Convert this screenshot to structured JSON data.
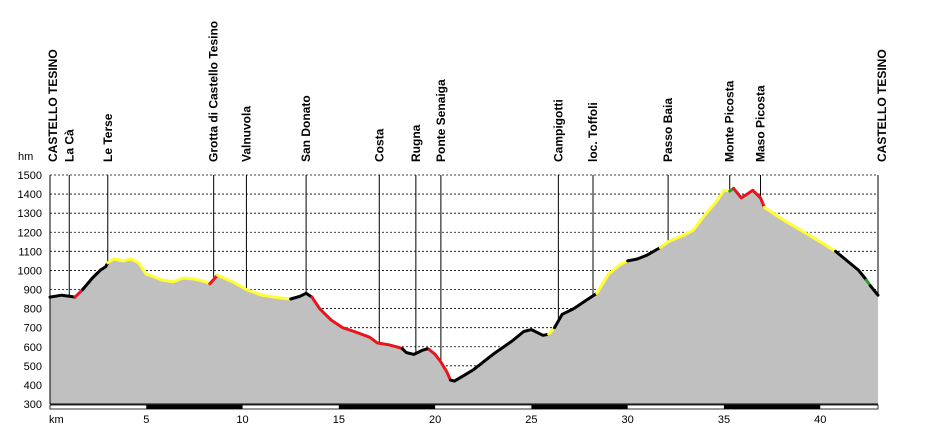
{
  "chart_data": {
    "type": "area",
    "title": "",
    "ylabel": "hm",
    "xlabel": "km",
    "xlim": [
      0,
      43
    ],
    "ylim": [
      300,
      1500
    ],
    "yticks": [
      300,
      400,
      500,
      600,
      700,
      800,
      900,
      1000,
      1100,
      1200,
      1300,
      1400,
      1500
    ],
    "xticks": [
      5,
      10,
      15,
      20,
      25,
      30,
      35,
      40
    ],
    "grid": "horizontal dashed",
    "colors": {
      "fill": "#c0c0c0",
      "black": "#000000",
      "yellow": "#ffff33",
      "red": "#e8141e",
      "green": "#2a9a2a"
    },
    "waypoints": [
      {
        "name": "CASTELLO TESINO",
        "km": 0.0
      },
      {
        "name": "La Cà",
        "km": 1.0
      },
      {
        "name": "Le Terse",
        "km": 3.0
      },
      {
        "name": "Grotta di Castello Tesino",
        "km": 8.5
      },
      {
        "name": "Valnuvola",
        "km": 10.2
      },
      {
        "name": "San Donato",
        "km": 13.3
      },
      {
        "name": "Costa",
        "km": 17.1
      },
      {
        "name": "Rugna",
        "km": 19.0
      },
      {
        "name": "Ponte Senaiga",
        "km": 20.3
      },
      {
        "name": "Campigotti",
        "km": 26.4
      },
      {
        "name": "loc. Toffoli",
        "km": 28.2
      },
      {
        "name": "Passo Baia",
        "km": 32.1
      },
      {
        "name": "Monte Picosta",
        "km": 35.3
      },
      {
        "name": "Maso Picosta",
        "km": 36.9
      },
      {
        "name": "CASTELLO TESINO",
        "km": 43.0
      }
    ],
    "series": [
      {
        "color": "black",
        "points": [
          [
            0.0,
            860
          ],
          [
            0.6,
            870
          ],
          [
            1.0,
            865
          ],
          [
            1.3,
            860
          ]
        ]
      },
      {
        "color": "red",
        "points": [
          [
            1.3,
            860
          ],
          [
            1.7,
            900
          ]
        ]
      },
      {
        "color": "black",
        "points": [
          [
            1.7,
            900
          ],
          [
            2.2,
            960
          ],
          [
            2.6,
            1000
          ],
          [
            2.9,
            1020
          ],
          [
            3.0,
            1040
          ]
        ]
      },
      {
        "color": "yellow",
        "points": [
          [
            3.0,
            1040
          ],
          [
            3.3,
            1060
          ],
          [
            3.8,
            1050
          ],
          [
            4.2,
            1060
          ],
          [
            4.6,
            1040
          ],
          [
            5.0,
            980
          ],
          [
            5.3,
            970
          ],
          [
            5.8,
            950
          ],
          [
            6.4,
            940
          ],
          [
            6.9,
            960
          ],
          [
            7.5,
            955
          ],
          [
            8.1,
            940
          ],
          [
            8.3,
            930
          ]
        ]
      },
      {
        "color": "red",
        "points": [
          [
            8.3,
            930
          ],
          [
            8.7,
            975
          ]
        ]
      },
      {
        "color": "yellow",
        "points": [
          [
            8.7,
            975
          ],
          [
            9.5,
            940
          ],
          [
            10.2,
            900
          ],
          [
            11.0,
            870
          ],
          [
            12.0,
            855
          ],
          [
            12.5,
            850
          ]
        ]
      },
      {
        "color": "black",
        "points": [
          [
            12.5,
            850
          ],
          [
            13.0,
            865
          ],
          [
            13.3,
            880
          ],
          [
            13.6,
            860
          ]
        ]
      },
      {
        "color": "red",
        "points": [
          [
            13.6,
            860
          ],
          [
            14.0,
            800
          ],
          [
            14.6,
            740
          ],
          [
            15.2,
            700
          ],
          [
            15.8,
            680
          ],
          [
            16.6,
            650
          ],
          [
            17.0,
            620
          ],
          [
            17.6,
            610
          ],
          [
            18.0,
            600
          ],
          [
            18.3,
            590
          ]
        ]
      },
      {
        "color": "black",
        "points": [
          [
            18.3,
            590
          ],
          [
            18.5,
            570
          ],
          [
            18.9,
            560
          ],
          [
            19.3,
            580
          ],
          [
            19.6,
            590
          ],
          [
            19.7,
            585
          ]
        ]
      },
      {
        "color": "red",
        "points": [
          [
            19.7,
            585
          ],
          [
            20.0,
            560
          ],
          [
            20.3,
            520
          ],
          [
            20.6,
            470
          ],
          [
            20.8,
            425
          ]
        ]
      },
      {
        "color": "black",
        "points": [
          [
            20.8,
            425
          ],
          [
            21.0,
            420
          ],
          [
            21.5,
            450
          ],
          [
            22.0,
            480
          ],
          [
            23.0,
            560
          ],
          [
            24.0,
            630
          ],
          [
            24.6,
            680
          ],
          [
            25.0,
            690
          ],
          [
            25.6,
            660
          ],
          [
            25.9,
            665
          ]
        ]
      },
      {
        "color": "yellow",
        "points": [
          [
            25.9,
            665
          ],
          [
            26.2,
            700
          ]
        ]
      },
      {
        "color": "black",
        "points": [
          [
            26.2,
            700
          ],
          [
            26.6,
            770
          ],
          [
            27.2,
            800
          ],
          [
            27.8,
            840
          ],
          [
            28.4,
            880
          ]
        ]
      },
      {
        "color": "yellow",
        "points": [
          [
            28.4,
            880
          ],
          [
            29.0,
            980
          ],
          [
            29.6,
            1030
          ],
          [
            30.0,
            1050
          ]
        ]
      },
      {
        "color": "black",
        "points": [
          [
            30.0,
            1050
          ],
          [
            30.5,
            1060
          ],
          [
            31.0,
            1080
          ],
          [
            31.7,
            1120
          ]
        ]
      },
      {
        "color": "yellow",
        "points": [
          [
            31.7,
            1120
          ],
          [
            32.1,
            1150
          ],
          [
            32.8,
            1180
          ],
          [
            33.4,
            1210
          ],
          [
            34.0,
            1290
          ],
          [
            34.6,
            1360
          ],
          [
            35.0,
            1420
          ],
          [
            35.3,
            1415
          ]
        ]
      },
      {
        "color": "green",
        "points": [
          [
            35.3,
            1415
          ],
          [
            35.5,
            1430
          ]
        ]
      },
      {
        "color": "red",
        "points": [
          [
            35.5,
            1430
          ],
          [
            35.9,
            1380
          ],
          [
            36.2,
            1400
          ],
          [
            36.5,
            1420
          ],
          [
            36.9,
            1380
          ],
          [
            37.1,
            1330
          ]
        ]
      },
      {
        "color": "yellow",
        "points": [
          [
            37.1,
            1330
          ],
          [
            38.0,
            1270
          ],
          [
            39.0,
            1210
          ],
          [
            40.0,
            1150
          ],
          [
            40.8,
            1100
          ]
        ]
      },
      {
        "color": "black",
        "points": [
          [
            40.8,
            1100
          ],
          [
            41.4,
            1050
          ],
          [
            42.0,
            1000
          ],
          [
            42.4,
            950
          ]
        ]
      },
      {
        "color": "green",
        "points": [
          [
            42.4,
            950
          ],
          [
            42.6,
            920
          ]
        ]
      },
      {
        "color": "black",
        "points": [
          [
            42.6,
            920
          ],
          [
            43.0,
            870
          ]
        ]
      }
    ]
  }
}
